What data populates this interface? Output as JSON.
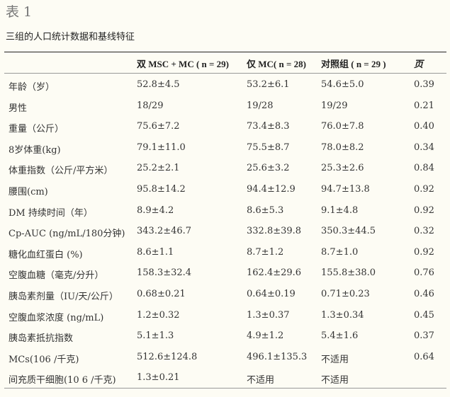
{
  "title": "表 1",
  "caption": "三组的人口统计数据和基线特征",
  "columns": [
    "",
    "双 MSC + MC ( n = 29)",
    "仅 MC( n = 28)",
    "对照组 ( n = 29 )",
    "页"
  ],
  "rows": [
    [
      "年龄（岁）",
      "52.8±4.5",
      "53.2±6.1",
      "54.6±5.0",
      "0.39"
    ],
    [
      "男性",
      "18/29",
      "19/28",
      "19/29",
      "0.21"
    ],
    [
      "重量（公斤）",
      "75.6±7.2",
      "73.4±8.3",
      "76.0±7.8",
      "0.40"
    ],
    [
      "8岁体重(kg)",
      "79.1±11.0",
      "75.5±8.7",
      "78.0±8.2",
      "0.34"
    ],
    [
      "体重指数（公斤/平方米）",
      "25.2±2.1",
      "25.6±3.2",
      "25.3±2.6",
      "0.84"
    ],
    [
      "腰围(cm)",
      "95.8±14.2",
      "94.4±12.9",
      "94.7±13.8",
      "0.92"
    ],
    [
      "DM 持续时间（年）",
      "8.9±4.2",
      "8.6±5.3",
      "9.1±4.8",
      "0.92"
    ],
    [
      "Cp-AUC (ng/mL/180分钟)",
      "343.2±46.7",
      "332.8±39.8",
      "350.3±44.5",
      "0.32"
    ],
    [
      "糖化血红蛋白 (%)",
      "8.6±1.1",
      "8.7±1.2",
      "8.7±1.0",
      "0.92"
    ],
    [
      "空腹血糖（毫克/分升）",
      "158.3±32.4",
      "162.4±29.6",
      "155.8±38.0",
      "0.76"
    ],
    [
      "胰岛素剂量（IU/天/公斤）",
      "0.68±0.21",
      "0.64±0.19",
      "0.71±0.23",
      "0.46"
    ],
    [
      "空腹血浆浓度 (ng/mL)",
      "1.2±0.32",
      "1.3±0.37",
      "1.3±0.34",
      "0.45"
    ],
    [
      "胰岛素抵抗指数",
      "5.1±1.3",
      "4.9±1.2",
      "5.4±1.6",
      "0.37"
    ],
    [
      "MCs(106 /千克)",
      "512.6±124.8",
      "496.1±135.3",
      "不适用",
      "0.64"
    ],
    [
      "间充质干细胞(10 6 /千克)",
      "1.3±0.21",
      "不适用",
      "不适用",
      ""
    ]
  ]
}
